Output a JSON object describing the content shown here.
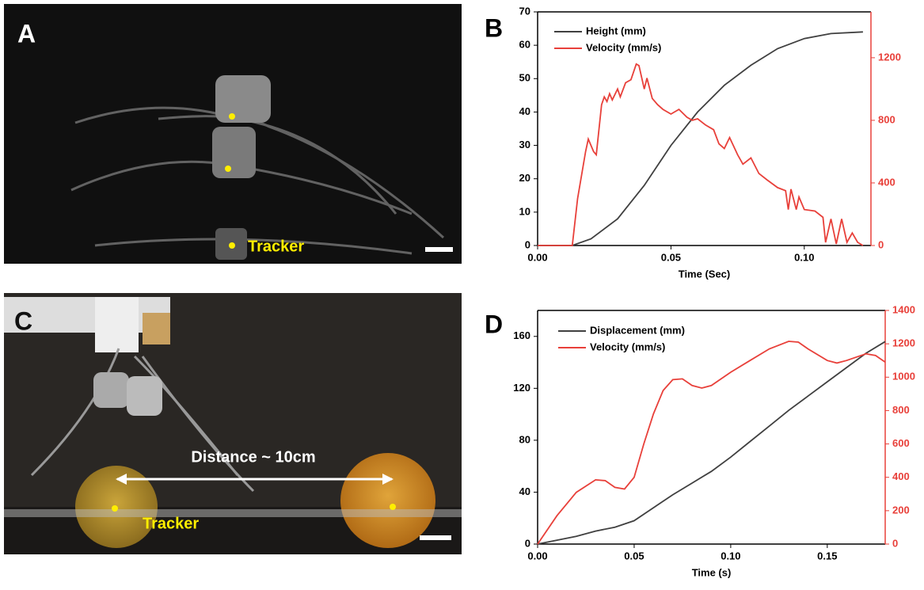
{
  "figure": {
    "panel_labels": [
      "A",
      "B",
      "C",
      "D"
    ],
    "photo_a": {
      "annotation": "Tracker"
    },
    "photo_c": {
      "annotations": [
        "Distance ~ 10cm",
        "Tracker"
      ]
    }
  },
  "chart_data": [
    {
      "type": "line",
      "xlabel": "Time (Sec)",
      "xlim": [
        0,
        0.125
      ],
      "xticks": [
        {
          "value": 0,
          "label": "0.00"
        },
        {
          "value": 0.05,
          "label": "0.05"
        },
        {
          "value": 0.1,
          "label": "0.10"
        }
      ],
      "ylim": [
        0,
        70
      ],
      "yticks": [
        0,
        10,
        20,
        30,
        40,
        50,
        60,
        70
      ],
      "y2lim": [
        0,
        1493
      ],
      "y2ticks": [
        0,
        400,
        800,
        1200
      ],
      "y2color": "#e8403a",
      "legend": "top-left",
      "series": [
        {
          "name": "Height (mm)",
          "color": "#404040",
          "x": [
            0,
            0.013,
            0.02,
            0.03,
            0.04,
            0.05,
            0.06,
            0.07,
            0.08,
            0.09,
            0.1,
            0.11,
            0.122
          ],
          "values": [
            0,
            0,
            2,
            8,
            18,
            30,
            40,
            48,
            54,
            59,
            62,
            63.5,
            64
          ]
        },
        {
          "name": "Velocity (mm/s)",
          "color": "#e8403a",
          "axis": "y2",
          "x": [
            0,
            0.013,
            0.015,
            0.018,
            0.019,
            0.021,
            0.022,
            0.024,
            0.025,
            0.026,
            0.027,
            0.028,
            0.03,
            0.031,
            0.033,
            0.035,
            0.037,
            0.038,
            0.04,
            0.041,
            0.043,
            0.045,
            0.047,
            0.05,
            0.053,
            0.056,
            0.058,
            0.06,
            0.063,
            0.066,
            0.068,
            0.07,
            0.072,
            0.075,
            0.077,
            0.08,
            0.083,
            0.086,
            0.09,
            0.093,
            0.094,
            0.095,
            0.097,
            0.098,
            0.1,
            0.104,
            0.107,
            0.108,
            0.11,
            0.112,
            0.114,
            0.116,
            0.118,
            0.12,
            0.122
          ],
          "values": [
            0,
            0,
            300,
            600,
            680,
            600,
            580,
            900,
            950,
            920,
            970,
            930,
            1000,
            950,
            1040,
            1060,
            1160,
            1150,
            1000,
            1070,
            940,
            900,
            870,
            840,
            870,
            820,
            800,
            810,
            770,
            740,
            650,
            620,
            690,
            580,
            520,
            560,
            460,
            420,
            370,
            350,
            230,
            360,
            230,
            310,
            230,
            220,
            180,
            20,
            170,
            10,
            170,
            20,
            80,
            20,
            0
          ]
        }
      ]
    },
    {
      "type": "line",
      "xlabel": "Time (s)",
      "xlim": [
        0,
        0.18
      ],
      "xticks": [
        {
          "value": 0,
          "label": "0.00"
        },
        {
          "value": 0.05,
          "label": "0.05"
        },
        {
          "value": 0.1,
          "label": "0.10"
        },
        {
          "value": 0.15,
          "label": "0.15"
        }
      ],
      "ylim": [
        0,
        180
      ],
      "yticks": [
        0,
        40,
        80,
        120,
        160
      ],
      "y2lim": [
        0,
        1400
      ],
      "y2ticks": [
        0,
        200,
        400,
        600,
        800,
        1000,
        1200,
        1400
      ],
      "y2color": "#e8403a",
      "legend": "top-left",
      "series": [
        {
          "name": "Displacement (mm)",
          "color": "#404040",
          "x": [
            0,
            0.01,
            0.02,
            0.03,
            0.04,
            0.05,
            0.06,
            0.07,
            0.08,
            0.09,
            0.1,
            0.11,
            0.12,
            0.13,
            0.14,
            0.15,
            0.16,
            0.17,
            0.18
          ],
          "values": [
            0,
            3,
            6,
            10,
            13,
            18,
            28,
            38,
            47,
            56,
            67,
            79,
            91,
            103,
            114,
            125,
            136,
            147,
            156
          ]
        },
        {
          "name": "Velocity (mm/s)",
          "color": "#e8403a",
          "axis": "y2",
          "x": [
            0,
            0.01,
            0.02,
            0.03,
            0.035,
            0.04,
            0.045,
            0.05,
            0.055,
            0.06,
            0.065,
            0.07,
            0.075,
            0.08,
            0.085,
            0.09,
            0.1,
            0.11,
            0.12,
            0.13,
            0.135,
            0.14,
            0.15,
            0.155,
            0.16,
            0.17,
            0.175,
            0.18
          ],
          "values": [
            0,
            170,
            310,
            385,
            380,
            340,
            330,
            400,
            600,
            780,
            920,
            985,
            990,
            950,
            935,
            950,
            1030,
            1100,
            1170,
            1215,
            1210,
            1170,
            1100,
            1085,
            1100,
            1140,
            1130,
            1090
          ]
        }
      ]
    }
  ]
}
